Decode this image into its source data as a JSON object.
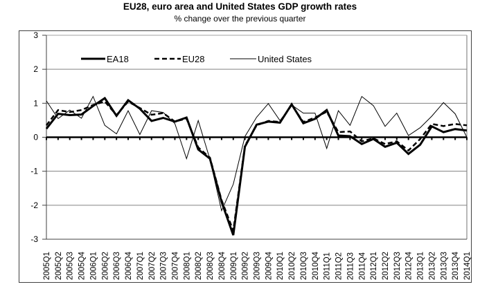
{
  "chart_data": {
    "type": "line",
    "title": "EU28, euro area and United States GDP growth rates",
    "subtitle": "% change over the previous quarter",
    "xlabel": "",
    "ylabel": "",
    "ylim": [
      -3,
      3
    ],
    "yticks": [
      3,
      2,
      1,
      0,
      -1,
      -2,
      -3
    ],
    "grid": true,
    "legend_position": "top-left",
    "categories": [
      "2005Q1",
      "2005Q2",
      "2005Q3",
      "2005Q4",
      "2006Q1",
      "2006Q2",
      "2006Q3",
      "2006Q4",
      "2007Q1",
      "2007Q2",
      "2007Q3",
      "2007Q4",
      "2008Q1",
      "2008Q2",
      "2008Q3",
      "2008Q4",
      "2009Q1",
      "2009Q2",
      "2009Q3",
      "2009Q4",
      "2010Q1",
      "2010Q2",
      "2010Q3",
      "2010Q4",
      "2011Q1",
      "2011Q2",
      "2011Q3",
      "2011Q4",
      "2012Q1",
      "2012Q2",
      "2012Q3",
      "2012Q4",
      "2013Q1",
      "2013Q2",
      "2013Q3",
      "2013Q4",
      "2014Q1"
    ],
    "series": [
      {
        "name": "EA18",
        "style": "thick-solid",
        "values": [
          0.25,
          0.69,
          0.65,
          0.67,
          0.92,
          1.15,
          0.63,
          1.09,
          0.84,
          0.48,
          0.57,
          0.46,
          0.58,
          -0.36,
          -0.63,
          -1.9,
          -2.88,
          -0.28,
          0.37,
          0.46,
          0.43,
          0.97,
          0.41,
          0.54,
          0.8,
          0.05,
          0.03,
          -0.2,
          -0.05,
          -0.28,
          -0.16,
          -0.49,
          -0.22,
          0.32,
          0.15,
          0.24,
          0.2
        ]
      },
      {
        "name": "EU28",
        "style": "thick-dashed",
        "values": [
          0.35,
          0.8,
          0.74,
          0.8,
          0.95,
          1.05,
          0.65,
          1.05,
          0.86,
          0.66,
          0.71,
          0.46,
          0.55,
          -0.3,
          -0.6,
          -1.85,
          -2.75,
          -0.25,
          0.35,
          0.48,
          0.45,
          0.95,
          0.45,
          0.58,
          0.75,
          0.15,
          0.17,
          -0.12,
          -0.03,
          -0.2,
          -0.12,
          -0.39,
          -0.05,
          0.39,
          0.33,
          0.39,
          0.35
        ]
      },
      {
        "name": "United States",
        "style": "thin-solid",
        "values": [
          1.07,
          0.55,
          0.8,
          0.56,
          1.2,
          0.35,
          0.1,
          0.78,
          0.08,
          0.78,
          0.73,
          0.4,
          -0.63,
          0.49,
          -0.65,
          -2.16,
          -1.38,
          0.02,
          0.59,
          0.99,
          0.49,
          0.95,
          0.71,
          0.71,
          -0.33,
          0.78,
          0.35,
          1.2,
          0.93,
          0.32,
          0.71,
          0.05,
          0.28,
          0.62,
          1.02,
          0.69,
          0.0
        ]
      }
    ]
  }
}
